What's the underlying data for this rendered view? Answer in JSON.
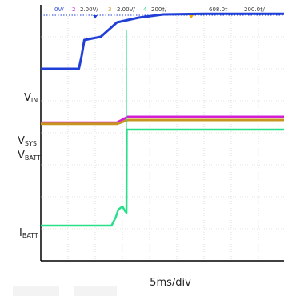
{
  "header": {
    "ch1": "0V/",
    "ch2_num": "2",
    "ch2_scale": "2.00V/",
    "ch3_num": "3",
    "ch3_scale": "2.00V/",
    "ch4_num": "4",
    "ch4_scale": "200‡/",
    "time_pos": "608.0‡",
    "time_div": "200.0‡/"
  },
  "labels": {
    "vin_main": "V",
    "vin_sub": "IN",
    "vsys_main": "V",
    "vsys_sub": "SYS",
    "vbatt_main": "V",
    "vbatt_sub": "BATT",
    "ibatt_main": "I",
    "ibatt_sub": "BATT"
  },
  "xlabel": "5ms/div",
  "colors": {
    "vin": "#1f3fd6",
    "vsys": "#d420d4",
    "vbatt": "#c8961e",
    "ibatt": "#28e08a",
    "grid": "#c9c9c9",
    "border": "#000000"
  },
  "chart_data": {
    "type": "line",
    "title": "",
    "xlabel": "5ms/div",
    "ylabel": "",
    "grid": true,
    "x_range_div": [
      0,
      10
    ],
    "y_range_div": [
      0,
      8
    ],
    "series": [
      {
        "name": "VIN",
        "x": [
          0,
          1.4,
          1.5,
          1.6,
          2.2,
          2.8,
          3.6,
          4.5,
          6.0,
          10
        ],
        "y": [
          6.0,
          6.0,
          6.4,
          6.9,
          7.0,
          7.45,
          7.6,
          7.7,
          7.72,
          7.72
        ]
      },
      {
        "name": "VSYS",
        "x": [
          0,
          2.8,
          3.2,
          10
        ],
        "y": [
          4.32,
          4.32,
          4.5,
          4.5
        ]
      },
      {
        "name": "VBATT",
        "x": [
          0,
          2.8,
          3.2,
          10
        ],
        "y": [
          4.28,
          4.28,
          4.4,
          4.4
        ]
      },
      {
        "name": "IBATT",
        "x": [
          0,
          2.6,
          2.75,
          2.85,
          3.0,
          3.1,
          3.15,
          3.16,
          3.2,
          10
        ],
        "y": [
          1.1,
          1.1,
          1.35,
          1.6,
          1.7,
          1.55,
          1.5,
          4.1,
          4.1,
          4.1
        ]
      }
    ]
  }
}
